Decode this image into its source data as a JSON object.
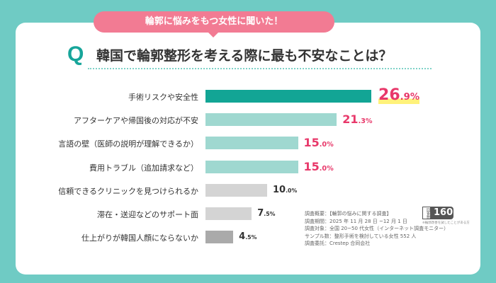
{
  "header": {
    "bubble": "輪郭に悩みをもつ女性に聞いた！",
    "q": "Q",
    "title": "韓国で輪郭整形を考える際に最も不安なことは？"
  },
  "chart_data": {
    "type": "bar",
    "orientation": "horizontal",
    "title": "韓国で輪郭整形を考える際に最も不安なことは？",
    "unit": "%",
    "categories": [
      "手術リスクや安全性",
      "アフターケアや帰国後の対応が不安",
      "言語の壁（医師の説明が理解できるか）",
      "費用トラブル（追加請求など）",
      "信頼できるクリニックを見つけられるか",
      "滞在・送迎などのサポート面",
      "仕上がりが韓国人顔にならないか"
    ],
    "values": [
      26.9,
      21.3,
      15.0,
      15.0,
      10.0,
      7.5,
      4.5
    ],
    "value_labels": [
      [
        "26",
        ".9%"
      ],
      [
        "21",
        ".3%"
      ],
      [
        "15",
        ".0%"
      ],
      [
        "15",
        ".0%"
      ],
      [
        "10",
        ".0%"
      ],
      [
        "7",
        ".5%"
      ],
      [
        "4",
        ".5%"
      ]
    ],
    "colors": [
      "#12a595",
      "#9fd8d0",
      "#9fd8d0",
      "#9fd8d0",
      "#d4d4d4",
      "#d4d4d4",
      "#aaaaaa"
    ],
    "label_colors": [
      "#e8386a",
      "#e8386a",
      "#e8386a",
      "#e8386a",
      "#333333",
      "#333333",
      "#333333"
    ]
  },
  "survey": {
    "lines": [
      "調査概要：【輪郭の悩みに関する調査】",
      "調査期間：2025 年 11 月 28 日 ~12 月 1 日",
      "調査対象：全国 20~50 代女性（インターネット調査モニター）",
      "サンプル数：整形手術を検討している女性 552 人",
      "調査委託：Crestep 合同会社"
    ],
    "badge_label": "回答数",
    "badge_value": "160",
    "badge_note": "※輪郭改善を試したことがある方"
  }
}
